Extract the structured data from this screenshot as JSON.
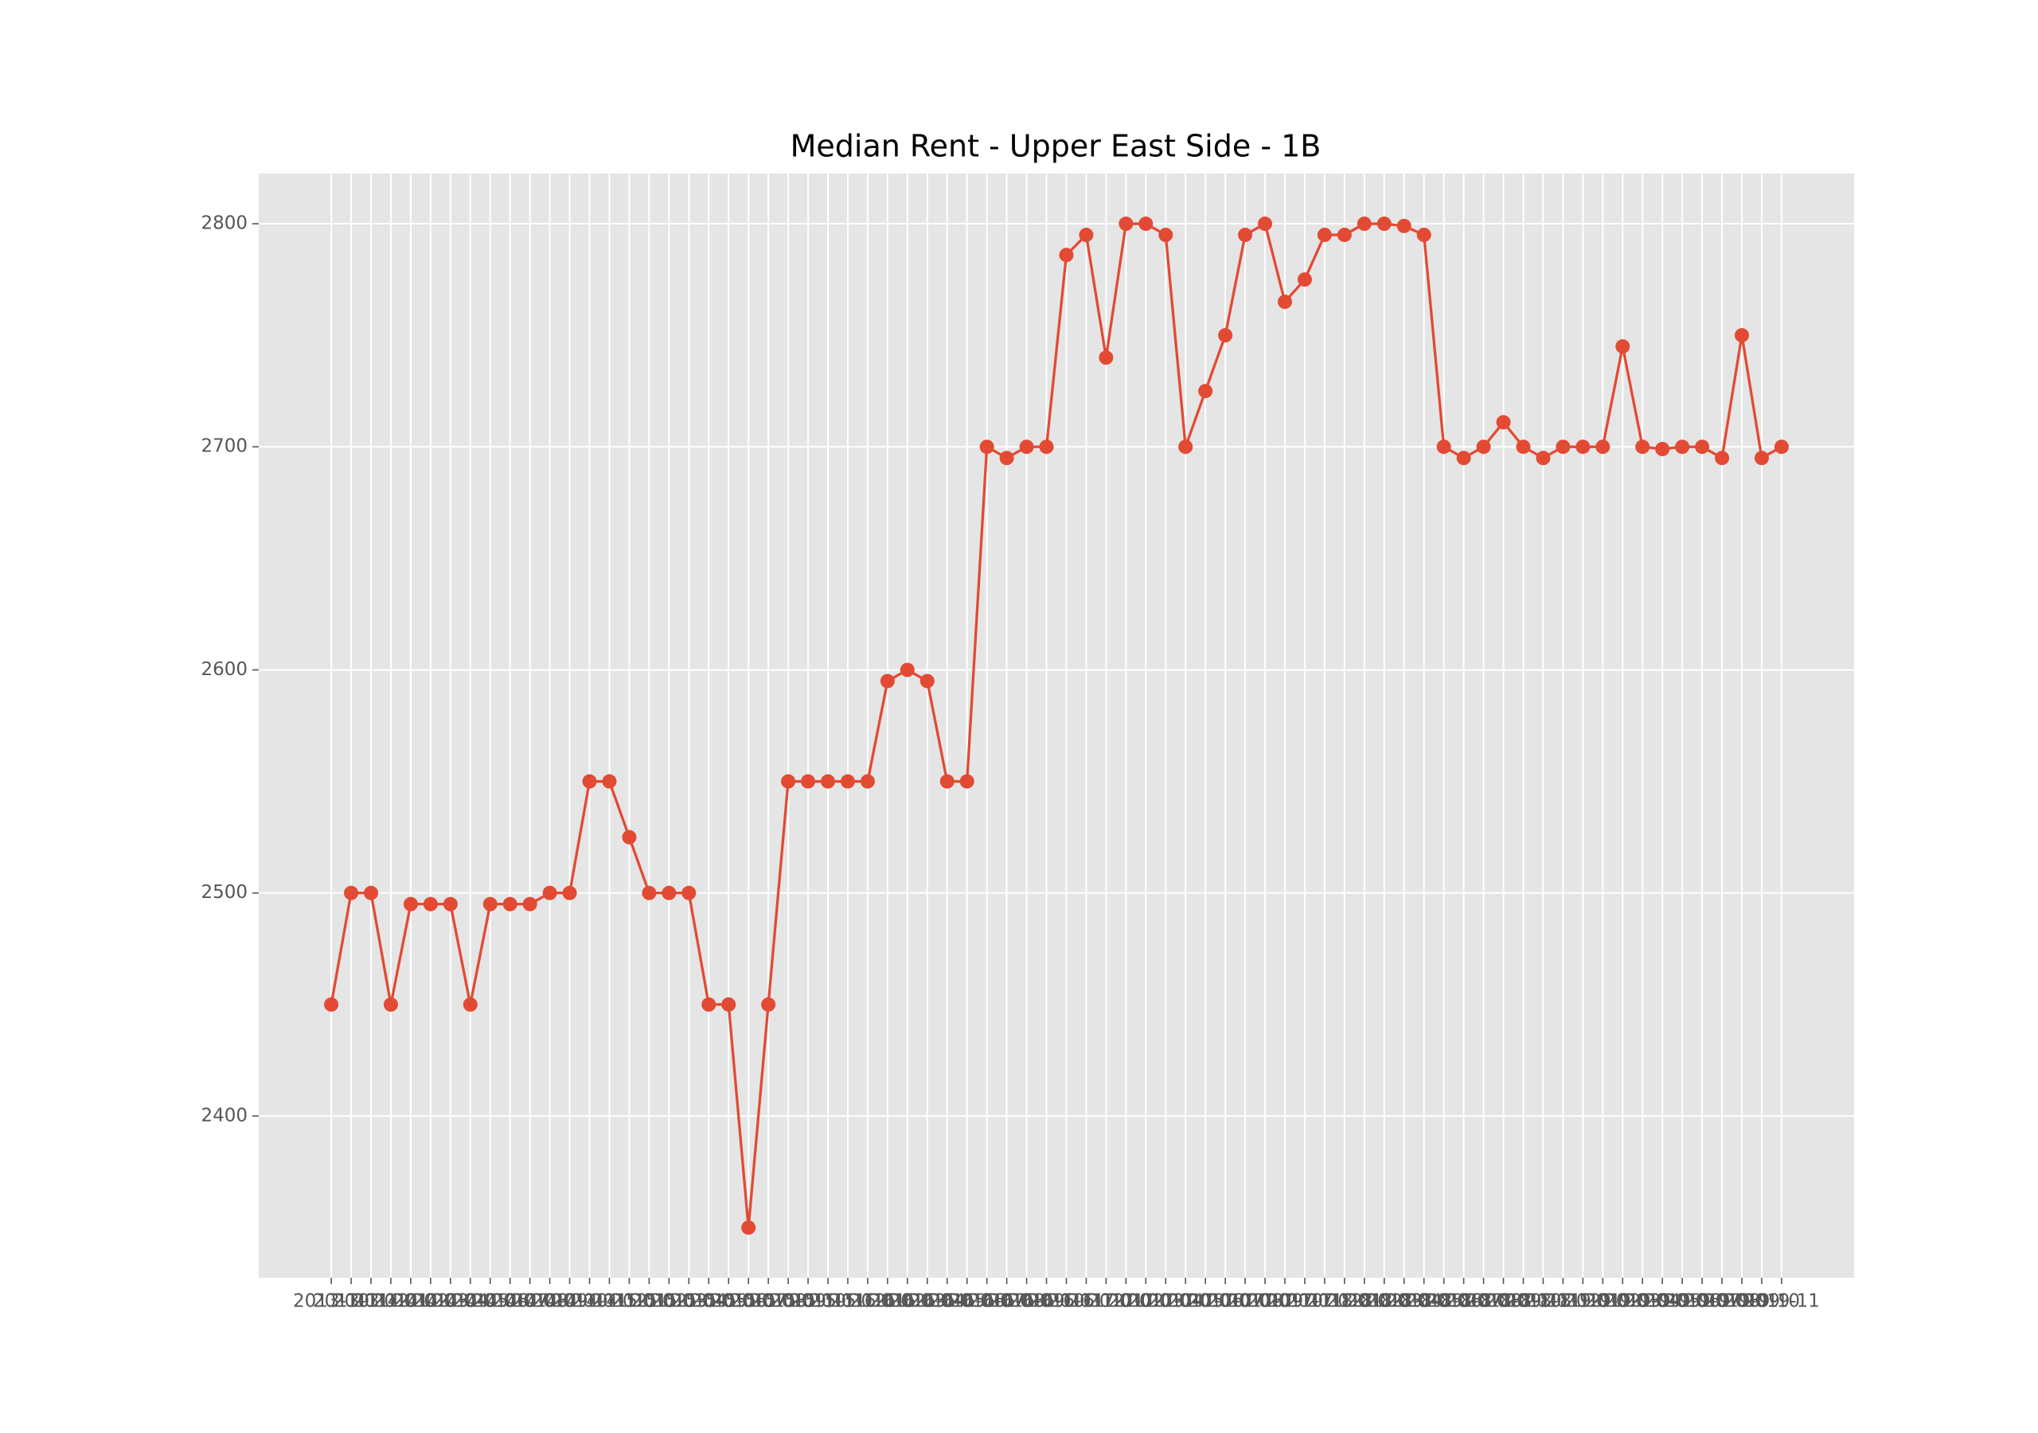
{
  "chart_data": {
    "type": "line",
    "title": "Median Rent - Upper East Side - 1B",
    "categories": [
      "2013-10",
      "2013-11",
      "2013-12",
      "2014-01",
      "2014-02",
      "2014-03",
      "2014-04",
      "2014-05",
      "2014-06",
      "2014-07",
      "2014-08",
      "2014-09",
      "2014-10",
      "2014-11",
      "2014-12",
      "2015-01",
      "2015-02",
      "2015-03",
      "2015-04",
      "2015-05",
      "2015-06",
      "2015-07",
      "2015-08",
      "2015-09",
      "2015-10",
      "2015-11",
      "2015-12",
      "2016-01",
      "2016-02",
      "2016-03",
      "2016-04",
      "2016-05",
      "2016-06",
      "2016-07",
      "2016-08",
      "2016-09",
      "2016-10",
      "2016-11",
      "2016-12",
      "2017-01",
      "2017-02",
      "2017-03",
      "2017-04",
      "2017-05",
      "2017-06",
      "2017-07",
      "2017-08",
      "2017-09",
      "2017-10",
      "2017-11",
      "2017-12",
      "2018-01",
      "2018-02",
      "2018-03",
      "2018-04",
      "2018-05",
      "2018-06",
      "2018-07",
      "2018-08",
      "2018-09",
      "2018-10",
      "2018-11",
      "2018-12",
      "2019-01",
      "2019-02",
      "2019-03",
      "2019-04",
      "2019-05",
      "2019-06",
      "2019-07",
      "2019-08",
      "2019-09",
      "2019-10",
      "2019-11"
    ],
    "values": [
      2450,
      2500,
      2500,
      2450,
      2495,
      2495,
      2495,
      2450,
      2495,
      2495,
      2495,
      2500,
      2500,
      2550,
      2550,
      2525,
      2500,
      2500,
      2500,
      2450,
      2450,
      2350,
      2450,
      2550,
      2550,
      2550,
      2550,
      2550,
      2595,
      2600,
      2595,
      2550,
      2550,
      2700,
      2695,
      2700,
      2700,
      2786,
      2795,
      2740,
      2800,
      2800,
      2795,
      2700,
      2725,
      2750,
      2795,
      2800,
      2765,
      2775,
      2795,
      2795,
      2800,
      2800,
      2799,
      2795,
      2700,
      2695,
      2700,
      2711,
      2700,
      2695,
      2700,
      2700,
      2700,
      2745,
      2700,
      2699,
      2700,
      2700,
      2695,
      2750,
      2695,
      2700
    ],
    "color": "#E24A33",
    "ylim": [
      2327.5,
      2822.5
    ],
    "yticks": [
      2400,
      2500,
      2600,
      2700,
      2800
    ],
    "grid": true
  }
}
